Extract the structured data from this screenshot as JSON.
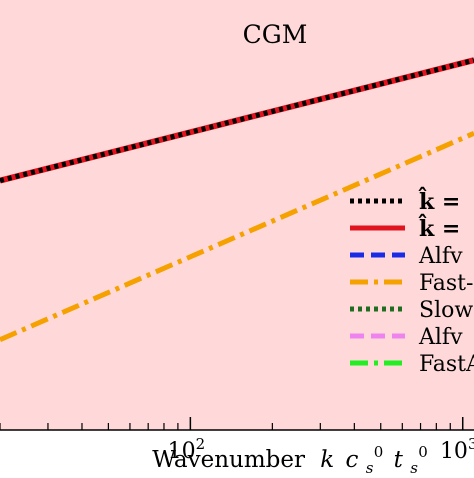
{
  "chart_data": {
    "type": "line",
    "title": "CGM",
    "xlabel_text": "Wavenumber",
    "xlabel_symbol": {
      "k": "k",
      "c": "c",
      "s_sub": "s",
      "zero_sup": "0",
      "t": "t",
      "s_sub2": "s",
      "zero_sup2": "0"
    },
    "x_scale": "log",
    "xlim": [
      20,
      1100
    ],
    "ylim": [
      0,
      1
    ],
    "x_ticks": [
      {
        "value": 100,
        "base": "10",
        "exp": "2"
      },
      {
        "value": 1000,
        "base": "10",
        "exp": "3"
      }
    ],
    "background_color": "#ffd9d9",
    "legend_location": "right",
    "series": [
      {
        "name": "k̂ =",
        "color": "#000000",
        "style": "dotted",
        "x": [
          20,
          1100
        ],
        "y": [
          0.58,
          0.86
        ]
      },
      {
        "name": "k̂ =",
        "color": "#e0141e",
        "style": "solid",
        "x": [
          20,
          1100
        ],
        "y": [
          0.58,
          0.86
        ]
      },
      {
        "name": "Alfv",
        "color": "#1a2be8",
        "style": "dashed",
        "x": [],
        "y": []
      },
      {
        "name": "Fast-",
        "color": "#f5a100",
        "style": "dashdot",
        "x": [
          20,
          1100
        ],
        "y": [
          0.21,
          0.69
        ]
      },
      {
        "name": "Slow",
        "color": "#1f6e1f",
        "style": "dotted",
        "x": [],
        "y": []
      },
      {
        "name": "Alfv",
        "color": "#ee82ee",
        "style": "dashed",
        "x": [],
        "y": []
      },
      {
        "name": "FastA",
        "color": "#22ee22",
        "style": "dashdot",
        "x": [],
        "y": []
      }
    ]
  }
}
